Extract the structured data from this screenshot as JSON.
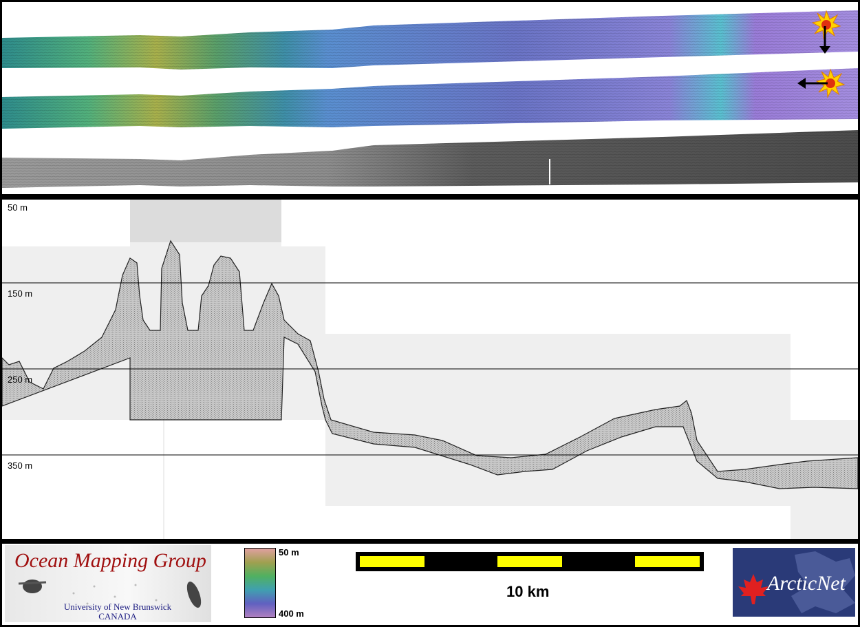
{
  "profile": {
    "depth_labels": [
      "50 m",
      "150 m",
      "250 m",
      "350 m"
    ]
  },
  "legend": {
    "colorbar_top": "50 m",
    "colorbar_bottom": "400 m",
    "scale_label": "10 km"
  },
  "logos": {
    "omg_title": "Ocean Mapping Group",
    "omg_line1": "University of New Brunswick",
    "omg_line2": "CANADA",
    "arcticnet_text": "ArcticNet"
  },
  "icons": [
    "sun-icon",
    "arrow-down-icon",
    "arrow-left-icon",
    "maple-leaf-icon"
  ],
  "colors": {
    "scale_bar_fill": "#ffff00",
    "scale_bar_bg": "#000000",
    "omg_red": "#a01010",
    "arctic_bg": "#2a3a78"
  }
}
